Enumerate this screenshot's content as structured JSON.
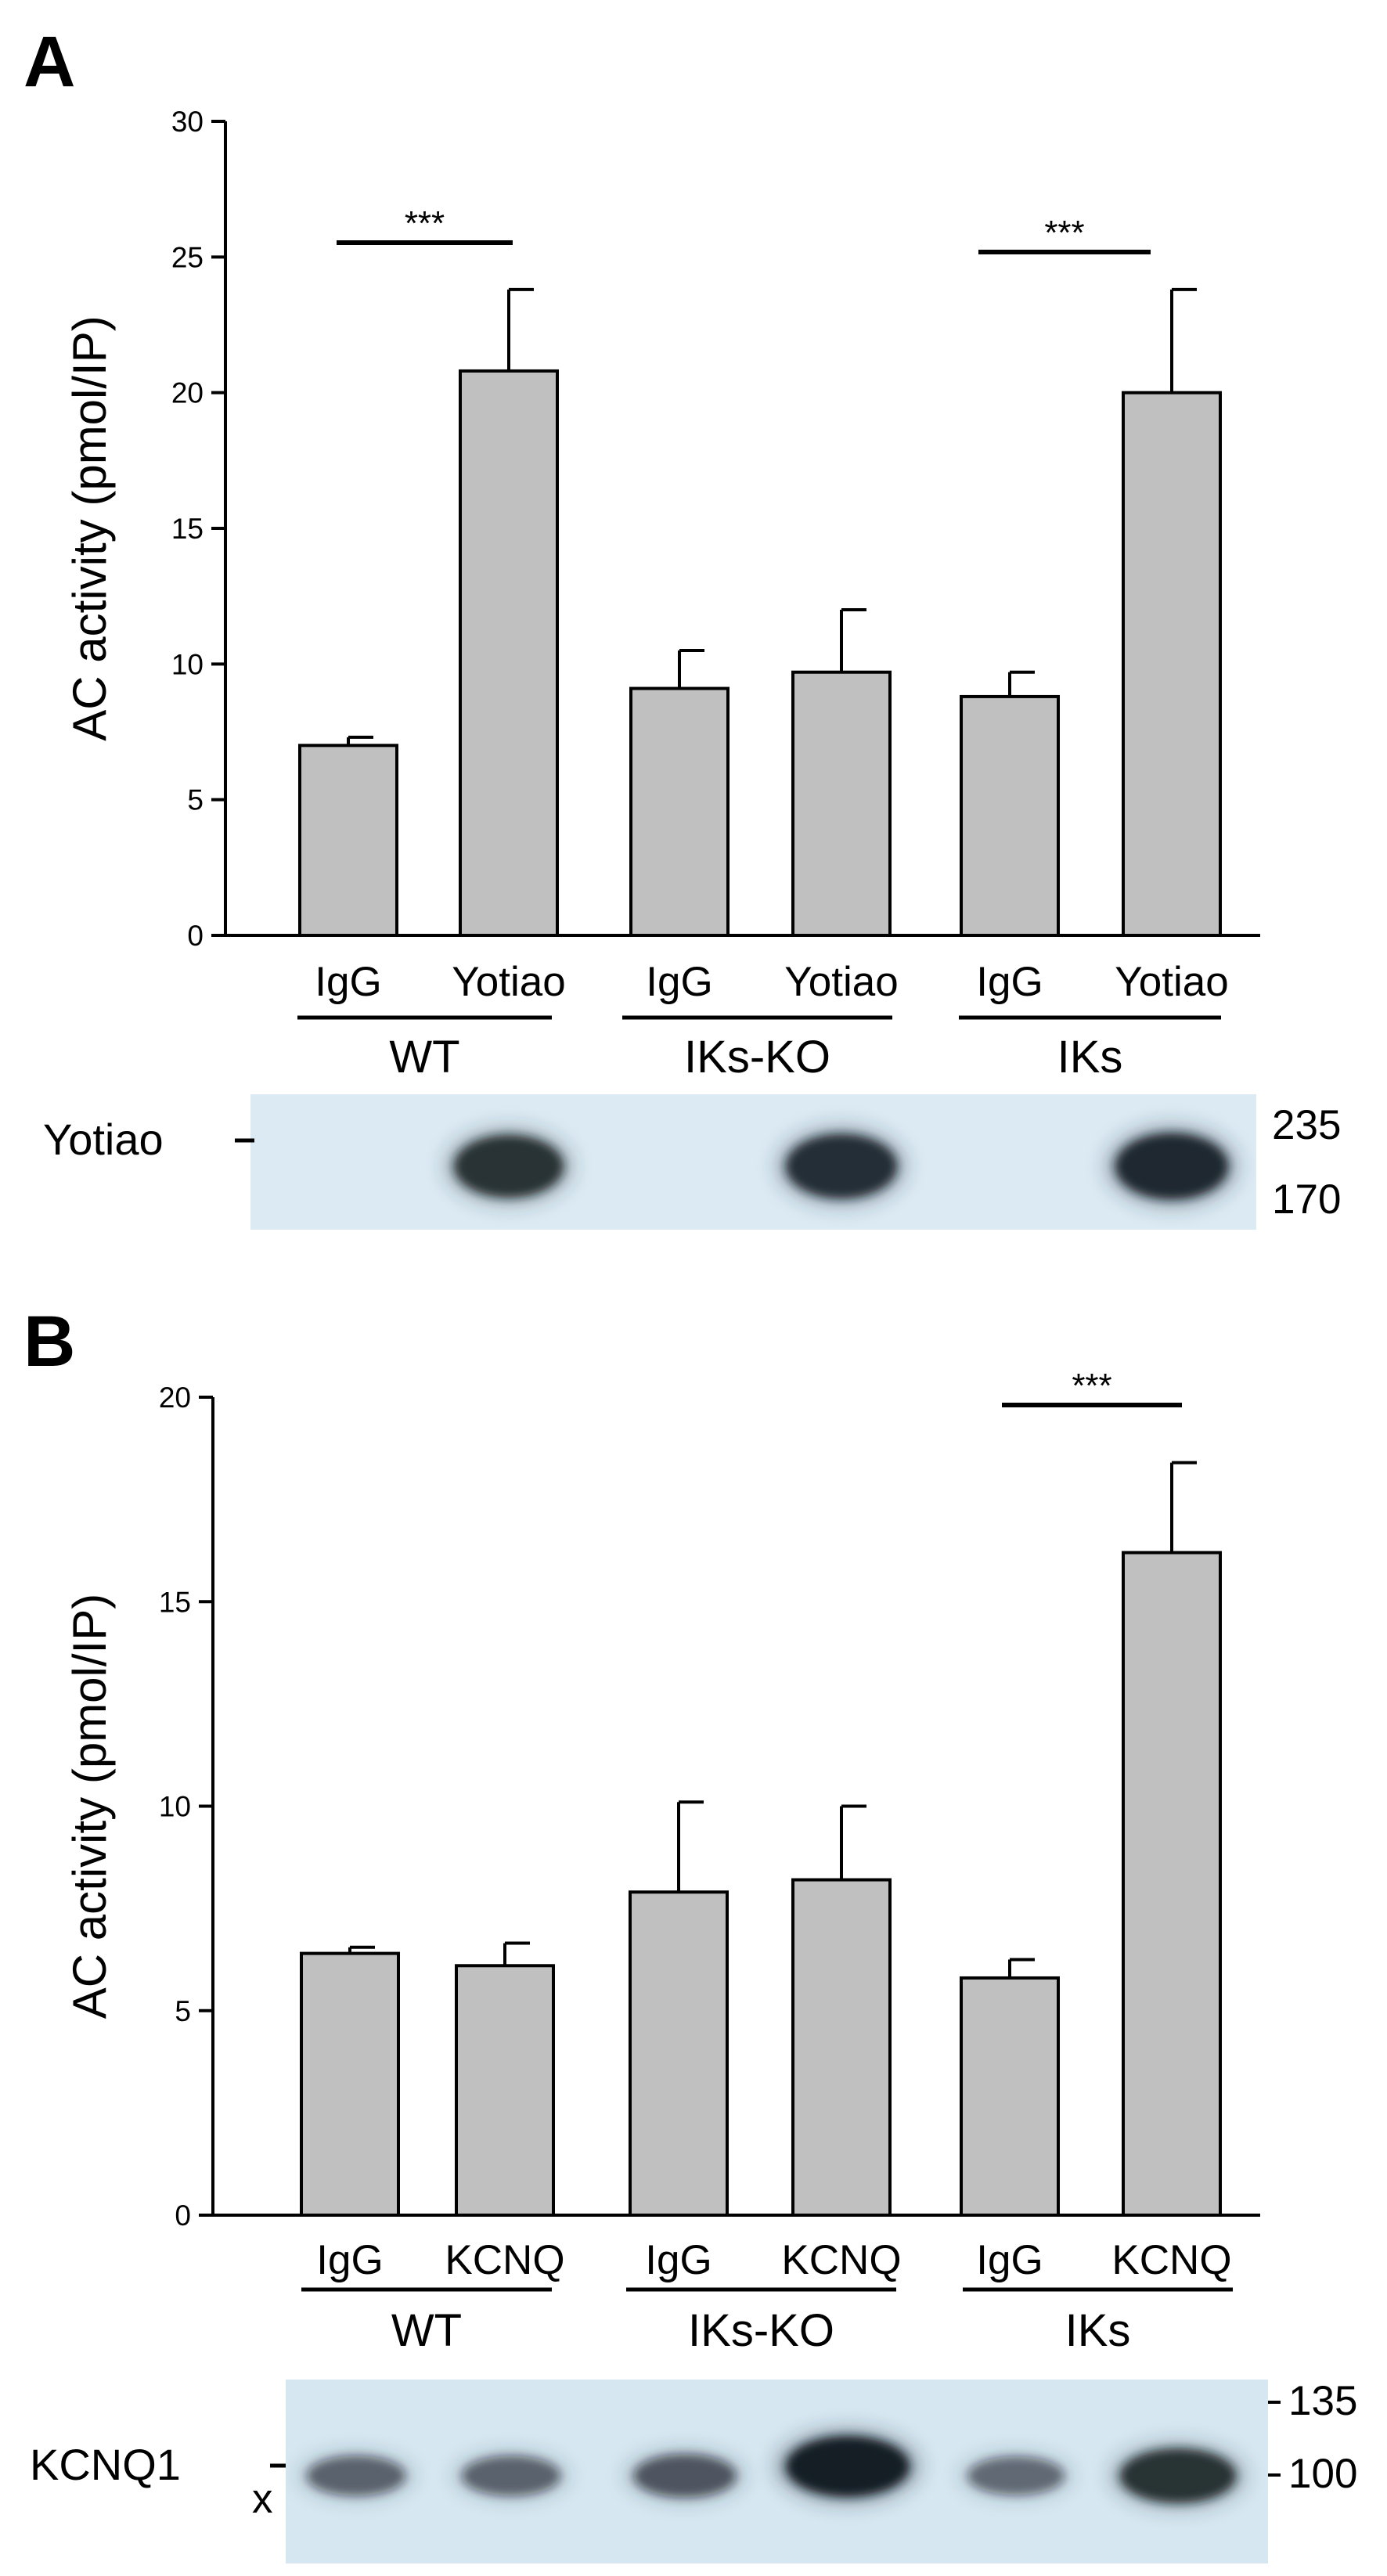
{
  "chart_data": [
    {
      "panel": "A",
      "type": "bar",
      "ylabel": "AC activity (pmol/IP)",
      "ylim": [
        0,
        30
      ],
      "yticks": [
        "0",
        "5",
        "10",
        "15",
        "20",
        "25",
        "30"
      ],
      "categories": [
        "IgG",
        "Yotiao",
        "IgG",
        "Yotiao",
        "IgG",
        "Yotiao"
      ],
      "values": [
        7.0,
        20.8,
        9.1,
        9.7,
        8.8,
        20.0
      ],
      "errors": [
        0.3,
        3.0,
        1.4,
        2.3,
        0.9,
        3.8
      ],
      "groups": [
        "WT",
        "IKs-KO",
        "IKs"
      ],
      "significance": [
        {
          "label": "***",
          "from": 0,
          "to": 1
        },
        {
          "label": "***",
          "from": 4,
          "to": 5
        }
      ],
      "blot": {
        "label": "Yotiao",
        "mw_markers": [
          "235",
          "170"
        ],
        "band_intensities": [
          0,
          0.8,
          0,
          0.85,
          0,
          0.9
        ]
      }
    },
    {
      "panel": "B",
      "type": "bar",
      "ylabel": "AC activity (pmol/IP)",
      "ylim": [
        0,
        20
      ],
      "yticks": [
        "0",
        "5",
        "10",
        "15",
        "20"
      ],
      "categories": [
        "IgG",
        "KCNQ",
        "IgG",
        "KCNQ",
        "IgG",
        "KCNQ"
      ],
      "values": [
        6.4,
        6.1,
        7.9,
        8.2,
        5.8,
        16.2
      ],
      "errors": [
        0.15,
        0.55,
        2.2,
        1.8,
        0.45,
        2.2
      ],
      "groups": [
        "WT",
        "IKs-KO",
        "IKs"
      ],
      "significance": [
        {
          "label": "***",
          "from": 4,
          "to": 5
        }
      ],
      "blot": {
        "label": "KCNQ1",
        "marker_x": "x",
        "mw_markers": [
          "135",
          "100"
        ],
        "band_intensities": [
          0.35,
          0.35,
          0.45,
          1.0,
          0.3,
          0.8
        ]
      }
    }
  ]
}
